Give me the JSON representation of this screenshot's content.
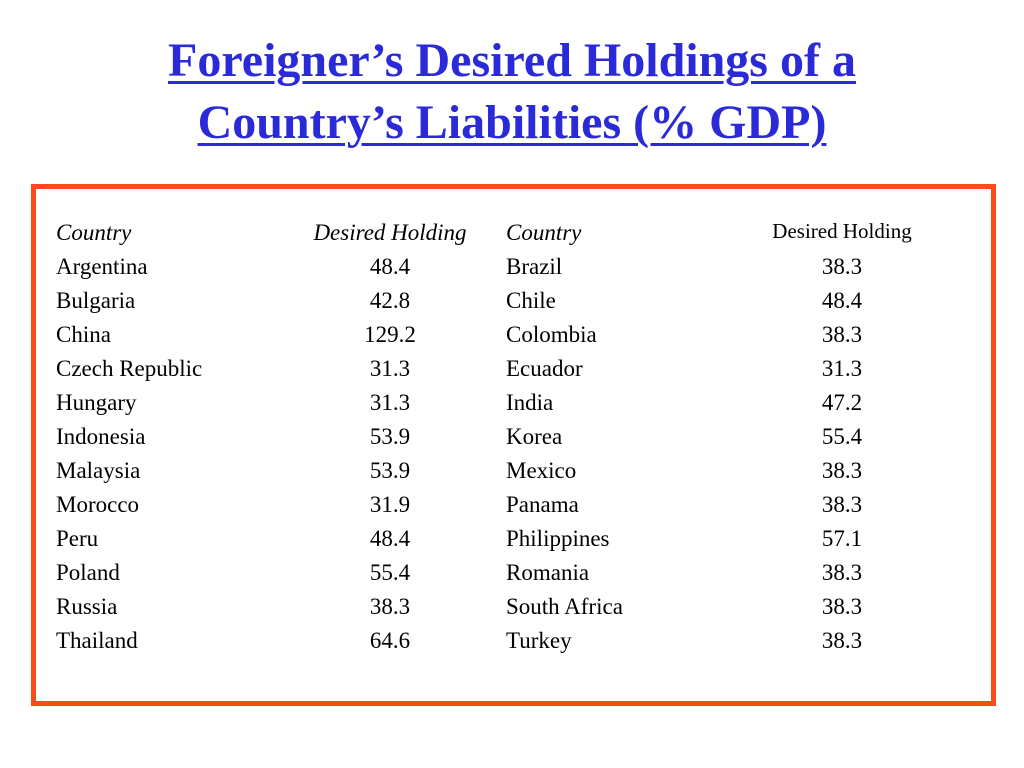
{
  "title": {
    "line1": "Foreigner’s Desired Holdings of a",
    "line2": "Country’s Liabilities (% GDP)"
  },
  "colors": {
    "title": "#2a2ad8",
    "frame_border": "#ff4a1c",
    "text": "#000000"
  },
  "table": {
    "headers": {
      "country_left": "Country",
      "holding_left": "Desired Holding",
      "country_right": "Country",
      "holding_right": "Desired Holding"
    },
    "rows": [
      {
        "c1": "Argentina",
        "v1": "48.4",
        "c2": "Brazil",
        "v2": "38.3"
      },
      {
        "c1": "Bulgaria",
        "v1": "42.8",
        "c2": "Chile",
        "v2": "48.4"
      },
      {
        "c1": "China",
        "v1": "129.2",
        "c2": "Colombia",
        "v2": "38.3"
      },
      {
        "c1": "Czech Republic",
        "v1": "31.3",
        "c2": "Ecuador",
        "v2": "31.3"
      },
      {
        "c1": "Hungary",
        "v1": "31.3",
        "c2": "India",
        "v2": "47.2"
      },
      {
        "c1": "Indonesia",
        "v1": "53.9",
        "c2": "Korea",
        "v2": "55.4"
      },
      {
        "c1": "Malaysia",
        "v1": "53.9",
        "c2": "Mexico",
        "v2": "38.3"
      },
      {
        "c1": "Morocco",
        "v1": "31.9",
        "c2": "Panama",
        "v2": "38.3"
      },
      {
        "c1": "Peru",
        "v1": "48.4",
        "c2": "Philippines",
        "v2": "57.1"
      },
      {
        "c1": "Poland",
        "v1": "55.4",
        "c2": "Romania",
        "v2": "38.3"
      },
      {
        "c1": "Russia",
        "v1": "38.3",
        "c2": "South Africa",
        "v2": "38.3"
      },
      {
        "c1": "Thailand",
        "v1": "64.6",
        "c2": "Turkey",
        "v2": "38.3"
      }
    ]
  }
}
